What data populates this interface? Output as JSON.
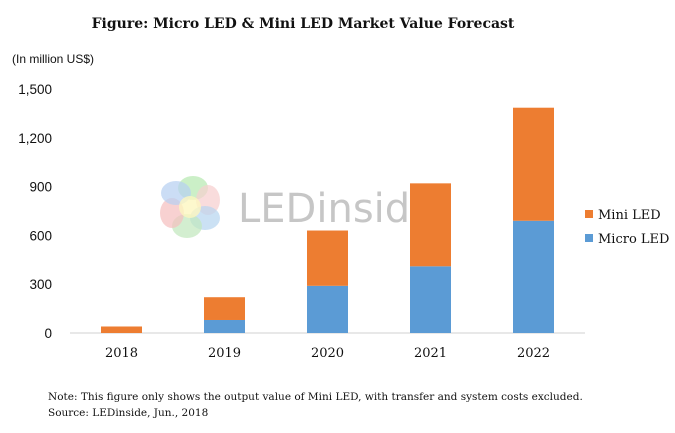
{
  "chart_data": {
    "type": "bar",
    "stacked": true,
    "title": "Figure: Micro LED & Mini LED Market Value Forecast",
    "unit_label": "(In million US$)",
    "categories": [
      "2018",
      "2019",
      "2020",
      "2021",
      "2022"
    ],
    "series": [
      {
        "name": "Micro LED",
        "color": "#5b9bd5",
        "values": [
          0,
          80,
          290,
          410,
          690
        ]
      },
      {
        "name": "Mini LED",
        "color": "#ed7d31",
        "values": [
          40,
          140,
          340,
          510,
          695
        ]
      }
    ],
    "yticks": [
      0,
      300,
      600,
      900,
      1200,
      1500
    ],
    "ytick_labels": [
      "0",
      "300",
      "600",
      "900",
      "1,200",
      "1,500"
    ],
    "ylim": [
      0,
      1500
    ],
    "grid": false,
    "legend_position": "right"
  },
  "watermark": {
    "text": "LEDinside",
    "icon": "flower-logo-icon"
  },
  "notes": {
    "line1": "Note: This figure only shows the output value of Mini LED, with transfer and system costs excluded.",
    "line2": "Source: LEDinside, Jun., 2018"
  }
}
